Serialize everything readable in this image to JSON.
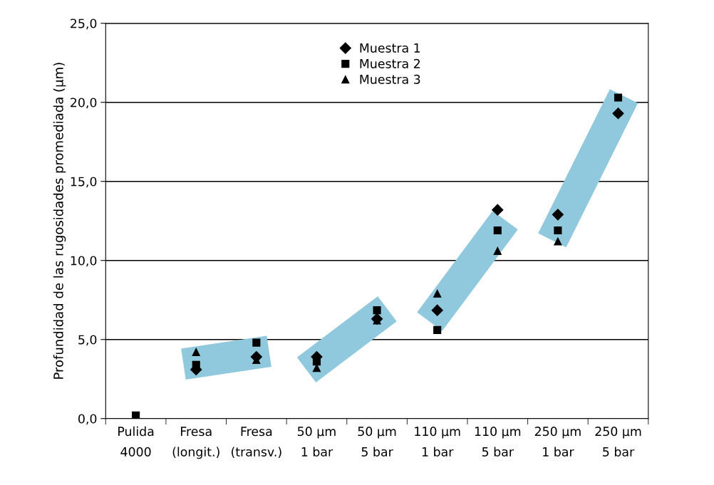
{
  "chart_data": {
    "type": "scatter",
    "ylabel": "Profundidad de las rugosidades promediada (µm)",
    "categories": [
      "Pulida\n4000",
      "Fresa\n(longit.)",
      "Fresa\n(transv.)",
      "50 µm\n1 bar",
      "50 µm\n5 bar",
      "110 µm\n1 bar",
      "110 µm\n5 bar",
      "250 µm\n1 bar",
      "250 µm\n5 bar"
    ],
    "series": [
      {
        "name": "Muestra 1",
        "color": "#000000",
        "marker": "diamond",
        "values": [
          null,
          3.1,
          3.9,
          3.9,
          6.3,
          6.85,
          13.2,
          12.9,
          19.3
        ]
      },
      {
        "name": "Muestra 2",
        "color": "#000000",
        "marker": "square",
        "values": [
          0.2,
          3.4,
          4.8,
          3.6,
          6.85,
          5.6,
          11.9,
          11.9,
          20.3
        ]
      },
      {
        "name": "Muestra 3",
        "color": "#000000",
        "marker": "triangle",
        "values": [
          null,
          4.2,
          3.7,
          3.2,
          6.2,
          7.9,
          10.6,
          11.2,
          19.4
        ]
      }
    ],
    "ylim": [
      0,
      25
    ],
    "yticks": [
      {
        "value": 0,
        "label": "0,0"
      },
      {
        "value": 5,
        "label": "5,0"
      },
      {
        "value": 10,
        "label": "10,0"
      },
      {
        "value": 15,
        "label": "15,0"
      },
      {
        "value": 20,
        "label": "20,0"
      },
      {
        "value": 25,
        "label": "25,0"
      }
    ],
    "grid": "y",
    "legend": "top"
  }
}
